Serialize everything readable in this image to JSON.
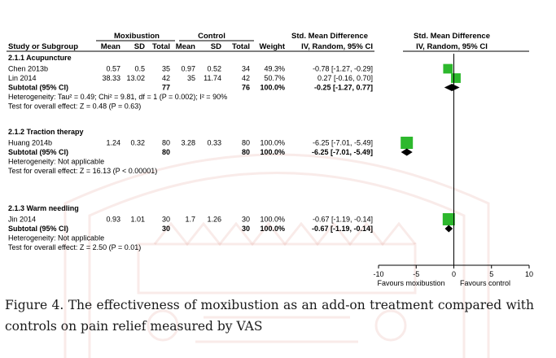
{
  "headers": {
    "group_moxibustion": "Moxibustion",
    "group_control": "Control",
    "smd_left": "Std. Mean Difference",
    "smd_right": "Std. Mean Difference",
    "study": "Study or Subgroup",
    "mean1": "Mean",
    "sd1": "SD",
    "total1": "Total",
    "mean2": "Mean",
    "sd2": "SD",
    "total2": "Total",
    "weight": "Weight",
    "method_left": "IV, Random, 95% CI",
    "method_right": "IV, Random, 95% CI"
  },
  "caption": "Figure 4. The effectiveness of moxibustion as an add-on treatment compared with controls on pain relief measured by VAS",
  "chart_data": {
    "type": "forest",
    "axis": {
      "xlim": [
        -10,
        10
      ],
      "ticks": [
        "-10",
        "-5",
        "0",
        "5",
        "10"
      ],
      "tick_values": [
        -10,
        -5,
        0,
        5,
        10
      ],
      "label_left": "Favours moxibustion",
      "label_right": "Favours control"
    },
    "groups": [
      {
        "title": "2.1.1 Acupuncture",
        "studies": [
          {
            "name": "Chen 2013b",
            "mean1": "0.57",
            "sd1": "0.5",
            "total1": "35",
            "mean2": "0.97",
            "sd2": "0.52",
            "total2": "34",
            "weight": "49.3%",
            "ci_text": "-0.78 [-1.27, -0.29]",
            "est": -0.78,
            "lo": -1.27,
            "hi": -0.29,
            "w": 49.3
          },
          {
            "name": "Lin 2014",
            "mean1": "38.33",
            "sd1": "13.02",
            "total1": "42",
            "mean2": "35",
            "sd2": "11.74",
            "total2": "42",
            "weight": "50.7%",
            "ci_text": "0.27 [-0.16, 0.70]",
            "est": 0.27,
            "lo": -0.16,
            "hi": 0.7,
            "w": 50.7
          }
        ],
        "subtotal": {
          "label": "Subtotal (95% CI)",
          "total1": "77",
          "total2": "76",
          "weight": "100.0%",
          "ci_text": "-0.25 [-1.27, 0.77]",
          "est": -0.25,
          "lo": -1.27,
          "hi": 0.77
        },
        "heterogeneity": "Heterogeneity: Tau² = 0.49; Chi² = 9.81, df = 1 (P = 0.002); I² = 90%",
        "overall": "Test for overall effect: Z = 0.48 (P = 0.63)"
      },
      {
        "title": "2.1.2 Traction therapy",
        "studies": [
          {
            "name": "Huang 2014b",
            "mean1": "1.24",
            "sd1": "0.32",
            "total1": "80",
            "mean2": "3.28",
            "sd2": "0.33",
            "total2": "80",
            "weight": "100.0%",
            "ci_text": "-6.25 [-7.01, -5.49]",
            "est": -6.25,
            "lo": -7.01,
            "hi": -5.49,
            "w": 100
          }
        ],
        "subtotal": {
          "label": "Subtotal (95% CI)",
          "total1": "80",
          "total2": "80",
          "weight": "100.0%",
          "ci_text": "-6.25 [-7.01, -5.49]",
          "est": -6.25,
          "lo": -7.01,
          "hi": -5.49
        },
        "heterogeneity": "Heterogeneity: Not applicable",
        "overall": "Test for overall effect: Z = 16.13 (P < 0.00001)"
      },
      {
        "title": "2.1.3 Warm needling",
        "studies": [
          {
            "name": "Jin 2014",
            "mean1": "0.93",
            "sd1": "1.01",
            "total1": "30",
            "mean2": "1.7",
            "sd2": "1.26",
            "total2": "30",
            "weight": "100.0%",
            "ci_text": "-0.67 [-1.19, -0.14]",
            "est": -0.67,
            "lo": -1.19,
            "hi": -0.14,
            "w": 100
          }
        ],
        "subtotal": {
          "label": "Subtotal (95% CI)",
          "total1": "30",
          "total2": "30",
          "weight": "100.0%",
          "ci_text": "-0.67 [-1.19, -0.14]",
          "est": -0.67,
          "lo": -1.19,
          "hi": -0.14
        },
        "heterogeneity": "Heterogeneity: Not applicable",
        "overall": "Test for overall effect: Z = 2.50 (P = 0.01)"
      }
    ],
    "colors": {
      "study_marker": "#2db82d",
      "diamond": "#000000",
      "line": "#000000",
      "watermark": "#c0392b"
    }
  }
}
